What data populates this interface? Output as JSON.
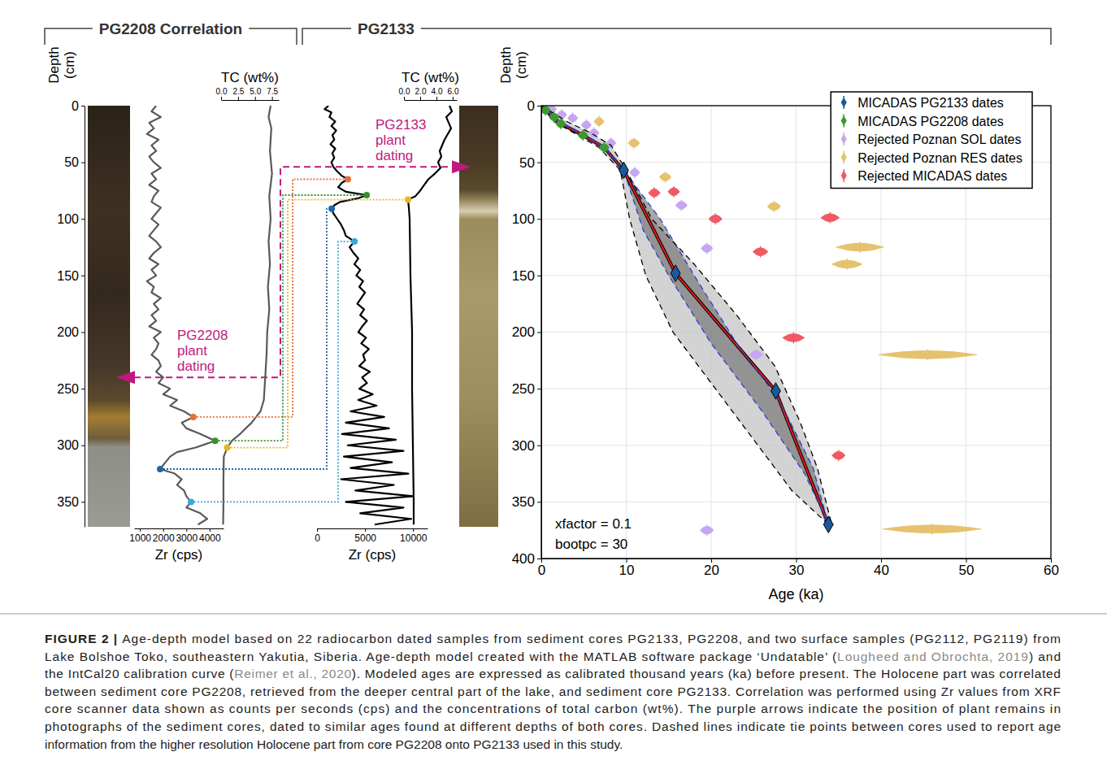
{
  "chart_data": [
    {
      "type": "line",
      "xlabel": "Zr (cps)",
      "ylabel": "Depth (cm)",
      "color": "#595959",
      "x": [
        1700,
        1500,
        1900,
        1400,
        1600,
        1300,
        1800,
        1500,
        1700,
        1400,
        1600,
        1900,
        1500,
        1700,
        1400,
        1800,
        1600,
        1500,
        1900,
        1700,
        1500,
        1800,
        1600,
        1400,
        1700,
        1900,
        1600,
        1400,
        1800,
        1500,
        1700,
        1300,
        1600,
        1500,
        1900,
        1600,
        1800,
        1500,
        1700,
        1400,
        1900,
        1600,
        1800,
        1700,
        1500,
        1800,
        1900,
        1700,
        2000,
        1800,
        2300,
        2000,
        2600,
        2300,
        2900,
        3300,
        2800,
        3000,
        3600,
        4240,
        3400,
        2600,
        2300,
        2100,
        1870,
        2500,
        2800,
        2600,
        2900,
        3000,
        3200,
        3000,
        3600,
        3900,
        3500
      ],
      "values": [
        0,
        5,
        10,
        15,
        20,
        25,
        30,
        35,
        40,
        45,
        50,
        55,
        60,
        65,
        70,
        75,
        80,
        85,
        90,
        95,
        100,
        105,
        110,
        115,
        120,
        125,
        130,
        135,
        140,
        145,
        150,
        155,
        160,
        165,
        170,
        175,
        180,
        185,
        190,
        195,
        200,
        205,
        210,
        215,
        220,
        225,
        230,
        235,
        240,
        245,
        250,
        255,
        260,
        265,
        270,
        275,
        280,
        285,
        290,
        296,
        302,
        306,
        310,
        315,
        321,
        325,
        330,
        335,
        340,
        345,
        350,
        355,
        360,
        365,
        370
      ],
      "xlim": [
        750,
        4600
      ],
      "xticks": [
        1000,
        2000,
        3000,
        4000
      ],
      "ylim": [
        0,
        372
      ],
      "yticks": [
        0,
        50,
        100,
        150,
        200,
        250,
        300,
        350
      ]
    },
    {
      "type": "line",
      "xlabel": "TC (wt%)",
      "color": "#595959",
      "x": [
        7.3,
        7.0,
        7.4,
        7.2,
        7.5,
        7.1,
        7.3,
        7.0,
        7.2,
        6.9,
        7.1,
        6.8,
        6.7,
        6.5,
        6.3,
        5.8,
        4.5,
        2.8,
        1.6,
        0.9,
        0.4,
        0.35,
        0.35,
        0.3
      ],
      "values": [
        0,
        10,
        20,
        40,
        60,
        80,
        100,
        120,
        140,
        160,
        180,
        200,
        220,
        240,
        260,
        270,
        280,
        290,
        296,
        302,
        310,
        330,
        350,
        370
      ],
      "xlim": [
        0,
        8.5
      ],
      "xticks": [
        {
          "value": 0,
          "label": "0.0"
        },
        {
          "value": 2.5,
          "label": "2.5"
        },
        {
          "value": 5,
          "label": "5.0"
        },
        {
          "value": 7.5,
          "label": "7.5"
        }
      ],
      "ylim": [
        0,
        372
      ],
      "tick_labels": "x"
    },
    {
      "type": "line",
      "xlabel": "Zr (cps)",
      "color": "#000000",
      "x": [
        1200,
        800,
        1500,
        1300,
        1900,
        1500,
        2000,
        1600,
        1800,
        1400,
        1900,
        1600,
        1800,
        1500,
        1700,
        2100,
        2600,
        3220,
        2600,
        2200,
        3000,
        5170,
        4200,
        2400,
        1800,
        1530,
        1700,
        2100,
        2500,
        2800,
        3000,
        3900,
        3400,
        3800,
        4300,
        3900,
        4500,
        4100,
        4800,
        4400,
        5000,
        4600,
        4200,
        4900,
        4500,
        5200,
        4700,
        4300,
        5100,
        4600,
        5400,
        4800,
        5000,
        4400,
        5500,
        4700,
        5200,
        4400,
        5800,
        4300,
        6200,
        3500,
        7000,
        3000,
        7500,
        2600,
        8200,
        3200,
        9000,
        2800,
        7800,
        3500,
        9500,
        2500,
        8000,
        4000,
        10000,
        3000,
        9000,
        4500,
        9800,
        6000
      ],
      "values": [
        0,
        3,
        6,
        10,
        14,
        18,
        22,
        26,
        30,
        34,
        38,
        42,
        46,
        50,
        54,
        58,
        62,
        65,
        68,
        72,
        76,
        79,
        82,
        85,
        88,
        91,
        95,
        100,
        105,
        110,
        115,
        120,
        125,
        130,
        135,
        140,
        145,
        150,
        155,
        160,
        165,
        170,
        175,
        180,
        185,
        190,
        195,
        200,
        205,
        210,
        215,
        220,
        225,
        230,
        235,
        240,
        245,
        250,
        255,
        260,
        265,
        270,
        275,
        280,
        285,
        290,
        295,
        300,
        305,
        310,
        315,
        320,
        325,
        330,
        335,
        340,
        345,
        350,
        355,
        360,
        365,
        370
      ],
      "xlim": [
        0,
        11500
      ],
      "xticks": [
        0,
        5000,
        10000
      ],
      "ylim": [
        0,
        372
      ],
      "tick_labels": "x"
    },
    {
      "type": "line",
      "xlabel": "TC (wt%)",
      "color": "#000000",
      "x": [
        5.6,
        5.9,
        5.2,
        5.5,
        5.8,
        5.4,
        5.0,
        4.7,
        4.4,
        4.6,
        4.2,
        4.5,
        3.8,
        3.0,
        2.5,
        2.0,
        1.4,
        0.5,
        0.6,
        0.7,
        0.8,
        1.0,
        1.0,
        1.1,
        1.2,
        1.2
      ],
      "values": [
        0,
        5,
        10,
        15,
        20,
        25,
        30,
        35,
        40,
        45,
        50,
        55,
        60,
        65,
        70,
        75,
        80,
        83,
        90,
        100,
        150,
        200,
        250,
        300,
        350,
        370
      ],
      "xlim": [
        0,
        6.5
      ],
      "xticks": [
        {
          "value": 0,
          "label": "0.0"
        },
        {
          "value": 2,
          "label": "2.0"
        },
        {
          "value": 4,
          "label": "4.0"
        },
        {
          "value": 6,
          "label": "6.0"
        }
      ],
      "ylim": [
        0,
        372
      ],
      "tick_labels": "x"
    },
    {
      "type": "scatter",
      "xlabel": "Age (ka)",
      "ylabel": "Depth (cm)",
      "xlim": [
        0,
        60
      ],
      "xticks": [
        0,
        10,
        20,
        30,
        40,
        50,
        60
      ],
      "ylim": [
        0,
        400
      ],
      "yticks": [
        0,
        50,
        100,
        150,
        200,
        250,
        300,
        350,
        400
      ],
      "grid": true,
      "legend": "upper right",
      "annotations": [
        "xfactor = 0.1",
        "bootpc = 30"
      ],
      "series": [
        {
          "name": "MICADAS PG2133 dates",
          "type": "scatter",
          "color": "#1a5a9a",
          "marker": "diamond",
          "x": [
            9.7,
            15.8,
            27.6,
            33.8
          ],
          "values": [
            57,
            148,
            252,
            370
          ],
          "errors": [
            0.3,
            0.5,
            0.4,
            0.6
          ]
        },
        {
          "name": "MICADAS PG2208 dates",
          "type": "scatter",
          "color": "#3c9a2e",
          "marker": "violin",
          "x": [
            0.5,
            1.5,
            2.3,
            4.9,
            7.4
          ],
          "values": [
            4,
            10,
            16,
            26,
            37
          ],
          "errors": [
            0.3,
            0.3,
            0.3,
            0.3,
            0.3
          ]
        },
        {
          "name": "Rejected Poznan SOL dates",
          "type": "scatter",
          "color": "#c6a6f2",
          "marker": "violin",
          "x": [
            1.2,
            2.4,
            3.7,
            5.3,
            6.2,
            8.2,
            11.0,
            16.5,
            19.5,
            25.3,
            19.5
          ],
          "values": [
            3,
            8,
            11,
            17,
            24,
            33,
            59,
            88,
            126,
            220,
            375
          ],
          "errors": [
            0.3,
            0.3,
            0.3,
            0.3,
            0.3,
            0.3,
            0.3,
            0.4,
            0.4,
            0.5,
            0.5
          ]
        },
        {
          "name": "Rejected Poznan RES dates",
          "type": "scatter",
          "color": "#e6c26e",
          "marker": "violin",
          "x": [
            6.8,
            10.9,
            14.6,
            27.4,
            37.5,
            36.0,
            45.5,
            46.0
          ],
          "values": [
            14,
            33,
            63,
            89,
            125,
            140,
            220,
            374
          ],
          "errors": [
            0.3,
            0.4,
            0.4,
            0.5,
            2.5,
            1.5,
            5.5,
            5.5
          ]
        },
        {
          "name": "Rejected MICADAS dates",
          "type": "scatter",
          "color": "#f05a64",
          "marker": "violin",
          "x": [
            13.3,
            15.6,
            20.5,
            34.0,
            25.8,
            29.7,
            35.0
          ],
          "values": [
            77,
            76,
            100,
            99,
            129,
            205,
            309
          ],
          "errors": [
            0.4,
            0.4,
            0.5,
            0.8,
            0.6,
            1.0,
            0.5
          ]
        },
        {
          "type": "line",
          "color": "#e41a1c",
          "line_style": "solid",
          "x": [
            0,
            0.5,
            2.3,
            4.9,
            7.4,
            9.7,
            15.8,
            27.6,
            33.8
          ],
          "values": [
            0,
            4,
            16,
            26,
            37,
            57,
            148,
            252,
            370
          ]
        },
        {
          "type": "line",
          "color": "#2b3fd6",
          "line_style": "dashed",
          "x": [
            0,
            2.2,
            4.8,
            7.3,
            9.7,
            12,
            15,
            20,
            26,
            31,
            33.8
          ],
          "values": [
            0,
            15,
            25,
            36,
            57,
            110,
            150,
            210,
            270,
            325,
            370
          ]
        },
        {
          "type": "line",
          "color": "#2b3fd6",
          "line_style": "dashed",
          "x": [
            0,
            2.4,
            5.0,
            7.5,
            9.7,
            14,
            18,
            23,
            28,
            32,
            33.8
          ],
          "values": [
            0,
            15,
            25,
            36,
            57,
            100,
            150,
            210,
            260,
            320,
            370
          ]
        },
        {
          "type": "line",
          "color": "#000000",
          "line_style": "dashed",
          "x": [
            0,
            1.5,
            4.3,
            6.8,
            9.3,
            10.4,
            12.3,
            15.5,
            20.5,
            25.5,
            29.5,
            33.8
          ],
          "values": [
            0,
            14,
            26,
            37,
            57,
            100,
            150,
            200,
            250,
            300,
            340,
            370
          ]
        },
        {
          "type": "line",
          "color": "#000000",
          "line_style": "dashed",
          "x": [
            0,
            3,
            5.8,
            8.2,
            10.0,
            13,
            18,
            23,
            27.5,
            30.5,
            32.5,
            34.2
          ],
          "values": [
            0,
            14,
            24,
            35,
            57,
            100,
            140,
            185,
            230,
            280,
            320,
            370
          ]
        }
      ]
    }
  ],
  "headers": [
    "PG2208 Correlation",
    "PG2133"
  ],
  "core_photos": [
    {
      "depth": 372
    },
    {
      "depth": 372
    }
  ],
  "tie_points": [
    {
      "color": "#e2703a",
      "variable": "Zr",
      "depth_pg2208": 275,
      "value_pg2208": 3300,
      "depth_pg2133": 65,
      "value_pg2133": 3220
    },
    {
      "color": "#3a8f2e",
      "variable": "Zr",
      "depth_pg2208": 296,
      "value_pg2208": 4240,
      "depth_pg2133": 79,
      "value_pg2133": 5170
    },
    {
      "color": "#e8b820",
      "variable": "TC",
      "depth_pg2208": 302,
      "value_pg2208": 0.9,
      "depth_pg2133": 83,
      "value_pg2133": 0.5
    },
    {
      "color": "#2166ac",
      "variable": "Zr",
      "depth_pg2208": 321,
      "value_pg2208": 1870,
      "depth_pg2133": 91,
      "value_pg2133": 1530
    },
    {
      "color": "#3aa6dc",
      "variable": "Zr",
      "depth_pg2208": 350,
      "value_pg2208": 3200,
      "depth_pg2133": 120,
      "value_pg2133": 3900
    }
  ],
  "plant_dating": [
    {
      "label": "PG2208 plant dating",
      "depth": 240
    },
    {
      "label": "PG2133 plant dating",
      "depth": 54
    }
  ],
  "caption": {
    "label": "FIGURE 2 |",
    "lines": [
      [
        "Age-depth model based on 22 radiocarbon dated samples from sediment cores PG2133, PG2208, and two surface samples (PG2112, PG2119) from"
      ],
      [
        "Lake Bolshoe Toko, southeastern Yakutia, Siberia. Age-depth model created with the MATLAB software package ‘Undatable’ (",
        "Lougheed and Obrochta, 2019",
        ") and"
      ],
      [
        "the IntCal20 calibration curve (",
        "Reimer et al., 2020",
        "). Modeled ages are expressed as calibrated thousand years (ka) before present. The Holocene part was correlated"
      ],
      [
        "between sediment core PG2208, retrieved from the deeper central part of the lake, and sediment core PG2133. Correlation was performed using Zr values from XRF"
      ],
      [
        "core scanner data shown as counts per seconds (cps) and the concentrations of total carbon (wt%). The purple arrows indicate the position of plant remains in"
      ],
      [
        "photographs of the sediment cores, dated to similar ages found at different depths of both cores. Dashed lines indicate tie points between cores used to report age"
      ],
      [
        "information from the higher resolution Holocene part from core PG2208 onto PG2133 used in this study."
      ]
    ]
  }
}
